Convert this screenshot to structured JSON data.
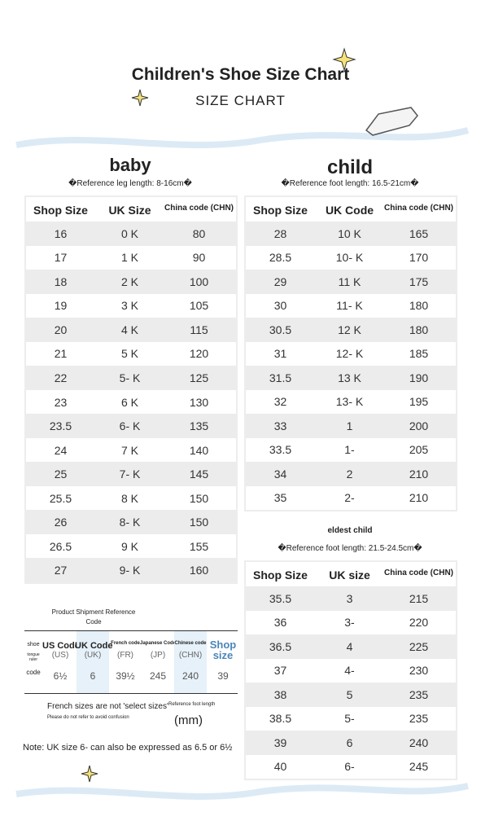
{
  "header": {
    "title": "Children's Shoe Size Chart",
    "subtitle": "SIZE CHART"
  },
  "baby": {
    "title": "baby",
    "note": "�Reference leg length: 8-16cm�",
    "table": {
      "headers": [
        "Shop Size",
        "UK Size",
        "China code (CHN)"
      ],
      "rows": [
        [
          "16",
          "0 K",
          "80"
        ],
        [
          "17",
          "1 K",
          "90"
        ],
        [
          "18",
          "2 K",
          "100"
        ],
        [
          "19",
          "3 K",
          "105"
        ],
        [
          "20",
          "4 K",
          "115"
        ],
        [
          "21",
          "5 K",
          "120"
        ],
        [
          "22",
          "5- K",
          "125"
        ],
        [
          "23",
          "6 K",
          "130"
        ],
        [
          "23.5",
          "6- K",
          "135"
        ],
        [
          "24",
          "7 K",
          "140"
        ],
        [
          "25",
          "7- K",
          "145"
        ],
        [
          "25.5",
          "8 K",
          "150"
        ],
        [
          "26",
          "8- K",
          "150"
        ],
        [
          "26.5",
          "9 K",
          "155"
        ],
        [
          "27",
          "9- K",
          "160"
        ]
      ]
    }
  },
  "child": {
    "title": "child",
    "note": "�Reference foot length: 16.5-21cm�",
    "table": {
      "headers": [
        "Shop Size",
        "UK Code",
        "China code (CHN)"
      ],
      "rows": [
        [
          "28",
          "10 K",
          "165"
        ],
        [
          "28.5",
          "10- K",
          "170"
        ],
        [
          "29",
          "11 K",
          "175"
        ],
        [
          "30",
          "11- K",
          "180"
        ],
        [
          "30.5",
          "12 K",
          "180"
        ],
        [
          "31",
          "12- K",
          "185"
        ],
        [
          "31.5",
          "13 K",
          "190"
        ],
        [
          "32",
          "13- K",
          "195"
        ],
        [
          "33",
          "1",
          "200"
        ],
        [
          "33.5",
          "1-",
          "205"
        ],
        [
          "34",
          "2",
          "210"
        ],
        [
          "35",
          "2-",
          "210"
        ]
      ]
    }
  },
  "eldest": {
    "title": "eldest child",
    "note": "�Reference foot length: 21.5-24.5cm�",
    "table": {
      "headers": [
        "Shop Size",
        "UK size",
        "China code (CHN)"
      ],
      "rows": [
        [
          "35.5",
          "3",
          "215"
        ],
        [
          "36",
          "3-",
          "220"
        ],
        [
          "36.5",
          "4",
          "225"
        ],
        [
          "37",
          "4-",
          "230"
        ],
        [
          "38",
          "5",
          "235"
        ],
        [
          "38.5",
          "5-",
          "235"
        ],
        [
          "39",
          "6",
          "240"
        ],
        [
          "40",
          "6-",
          "245"
        ]
      ]
    }
  },
  "reference": {
    "title": "Product Shipment Reference Code",
    "row_labels": [
      "shoe",
      "tongue ruler",
      "code"
    ],
    "columns": [
      {
        "name": "US Code",
        "abbr": "(US)",
        "value": "6½"
      },
      {
        "name": "UK Code",
        "abbr": "(UK)",
        "value": "6"
      },
      {
        "name": "French code",
        "abbr": "(FR)",
        "value": "39½"
      },
      {
        "name": "Japanese Code",
        "abbr": "(JP)",
        "value": "245"
      },
      {
        "name": "Chinese code",
        "abbr": "(CHN)",
        "value": "240"
      },
      {
        "name": "Shop size",
        "value": "39"
      }
    ],
    "french_note": "French sizes are not 'select sizes'",
    "french_subnote": "Please do not refer to avoid confusion",
    "foot_label": "Reference foot length",
    "unit": "(mm)"
  },
  "footnote": "Note: UK size 6- can also be expressed as 6.5 or 6½"
}
